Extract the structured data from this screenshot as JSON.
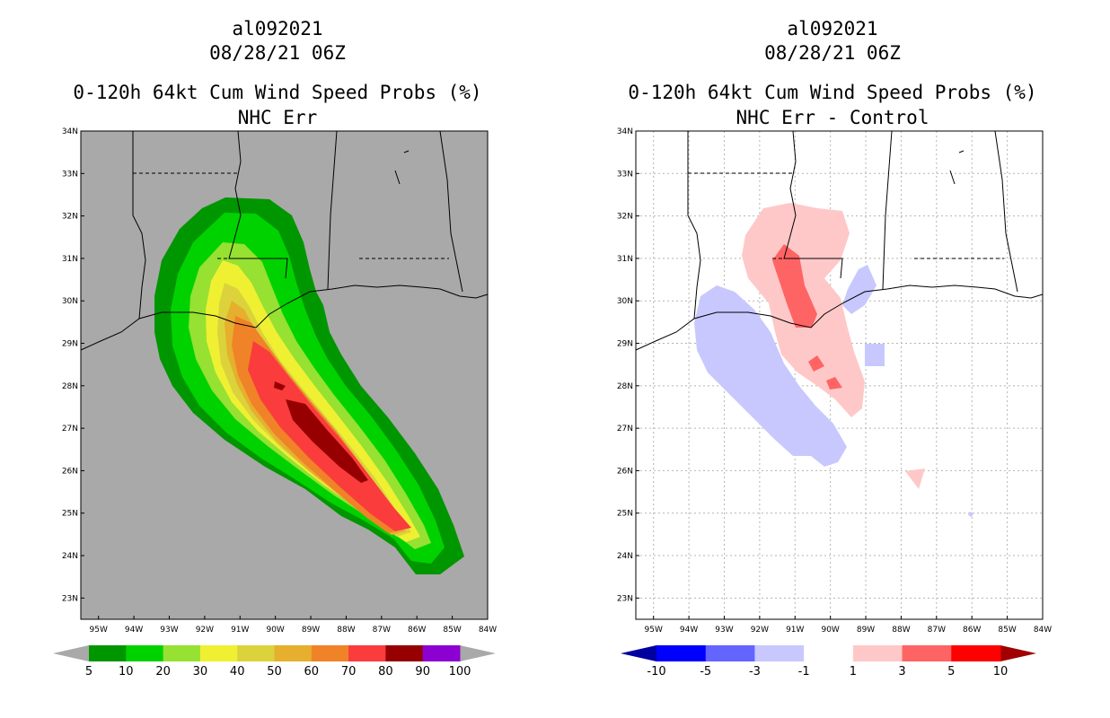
{
  "panels": [
    {
      "storm_id": "al092021",
      "datetime": "08/28/21 06Z",
      "product": "0-120h 64kt Cum Wind Speed Probs (%)",
      "subtitle": "NHC Err",
      "background_color": "#a9a9a9",
      "colorbar_labels": [
        "5",
        "10",
        "20",
        "30",
        "40",
        "50",
        "60",
        "70",
        "80",
        "90",
        "100"
      ]
    },
    {
      "storm_id": "al092021",
      "datetime": "08/28/21 06Z",
      "product": "0-120h 64kt Cum Wind Speed Probs (%)",
      "subtitle": "NHC Err - Control",
      "background_color": "#ffffff",
      "colorbar_labels": [
        "-10",
        "-5",
        "-3",
        "-1",
        "1",
        "3",
        "5",
        "10"
      ]
    }
  ],
  "axes": {
    "lon_labels": [
      "95W",
      "94W",
      "93W",
      "92W",
      "91W",
      "90W",
      "89W",
      "88W",
      "87W",
      "86W",
      "85W",
      "84W"
    ],
    "lat_labels": [
      "23N",
      "24N",
      "25N",
      "26N",
      "27N",
      "28N",
      "29N",
      "30N",
      "31N",
      "32N",
      "33N",
      "34N"
    ]
  },
  "colors": {
    "prob_scale": [
      "#009600",
      "#00d200",
      "#96e132",
      "#f0f032",
      "#dcd23c",
      "#e6af2d",
      "#f08228",
      "#fa3c3c",
      "#960000",
      "#8c00d2"
    ],
    "diff_scale": [
      "#0000a0",
      "#0000ff",
      "#6464ff",
      "#c8c8ff",
      "#ffffff",
      "#ffc8c8",
      "#ff6464",
      "#ff0000",
      "#a00000"
    ]
  }
}
